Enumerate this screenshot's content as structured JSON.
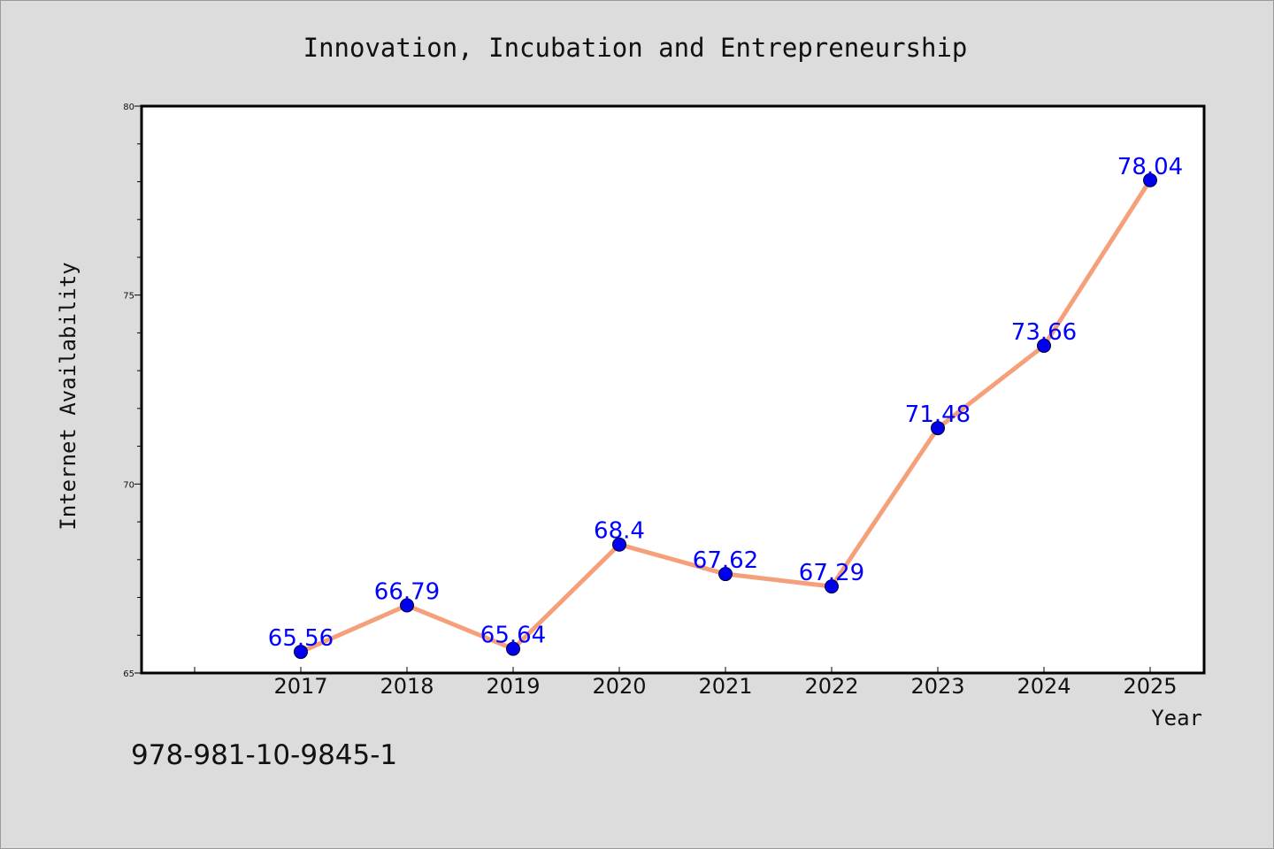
{
  "chart_data": {
    "type": "line",
    "title": "Innovation, Incubation and Entrepreneurship",
    "xlabel": "Year",
    "ylabel": "Internet Availability",
    "categories": [
      "2017",
      "2018",
      "2019",
      "2020",
      "2021",
      "2022",
      "2023",
      "2024",
      "2025"
    ],
    "series": [
      {
        "values": [
          65.56,
          66.79,
          65.64,
          68.4,
          67.62,
          67.29,
          71.48,
          73.66,
          78.04
        ],
        "data_labels": [
          "65.56",
          "66.79",
          "65.64",
          "68.4",
          "67.62",
          "67.29",
          "71.48",
          "73.66",
          "78.04"
        ],
        "line_color": "#f5a07a",
        "marker_color": "#0000ee"
      }
    ],
    "ylim": [
      65,
      80
    ],
    "y_ticks": [
      65,
      70,
      75,
      80
    ],
    "y_tick_labels": [
      "65",
      "70",
      "75",
      "80"
    ],
    "grid": false,
    "legend": "none"
  },
  "footer_code": "978-981-10-9845-1"
}
